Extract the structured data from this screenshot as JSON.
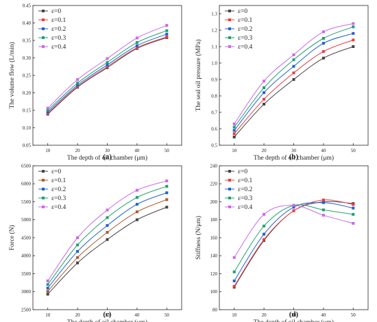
{
  "colors": [
    "#444444",
    "#ee3b3b",
    "#1f5fd9",
    "#1aa36a",
    "#cc66ee"
  ],
  "colors_c": [
    "#444444",
    "#b05a2a",
    "#1f5fd9",
    "#1aa36a",
    "#cc66ee"
  ],
  "marker": "square",
  "chart_data": [
    {
      "panel_label": "(a)",
      "type": "line",
      "xlabel": "The depth of oil chamber (μm)",
      "ylabel": "The volume flow (L/min)",
      "x": [
        10,
        20,
        30,
        40,
        50
      ],
      "xlim": [
        5,
        55
      ],
      "ylim": [
        0.05,
        0.45
      ],
      "xticks": [
        10,
        20,
        30,
        40,
        50
      ],
      "yticks": [
        0.05,
        0.1,
        0.15,
        0.2,
        0.25,
        0.3,
        0.35,
        0.4,
        0.45
      ],
      "ytick_labels": [
        "0.05",
        "0.10",
        "0.15",
        "0.20",
        "0.25",
        "0.30",
        "0.35",
        "0.40",
        "0.45"
      ],
      "legend": "top-left",
      "series": [
        {
          "name": "ε=0",
          "values": [
            0.139,
            0.216,
            0.272,
            0.327,
            0.358
          ]
        },
        {
          "name": "ε=0.1",
          "values": [
            0.141,
            0.218,
            0.275,
            0.329,
            0.36
          ]
        },
        {
          "name": "ε=0.2",
          "values": [
            0.145,
            0.222,
            0.28,
            0.335,
            0.368
          ]
        },
        {
          "name": "ε=0.3",
          "values": [
            0.15,
            0.228,
            0.287,
            0.344,
            0.378
          ]
        },
        {
          "name": "ε=0.4",
          "values": [
            0.156,
            0.238,
            0.298,
            0.357,
            0.393
          ]
        }
      ]
    },
    {
      "panel_label": "(b)",
      "type": "line",
      "xlabel": "The depth of oil chamber (μm)",
      "ylabel": "The seal oil pressure (MPa)",
      "x": [
        10,
        20,
        30,
        40,
        50
      ],
      "xlim": [
        5,
        55
      ],
      "ylim": [
        0.5,
        1.35
      ],
      "xticks": [
        10,
        20,
        30,
        40,
        50
      ],
      "yticks": [
        0.5,
        0.6,
        0.7,
        0.8,
        0.9,
        1.0,
        1.1,
        1.2,
        1.3
      ],
      "ytick_labels": [
        "0.5",
        "0.6",
        "0.7",
        "0.8",
        "0.9",
        "1.0",
        "1.1",
        "1.2",
        "1.3"
      ],
      "legend": "top-left",
      "series": [
        {
          "name": "ε=0",
          "values": [
            0.55,
            0.75,
            0.9,
            1.03,
            1.1
          ]
        },
        {
          "name": "ε=0.1",
          "values": [
            0.57,
            0.78,
            0.94,
            1.07,
            1.14
          ]
        },
        {
          "name": "ε=0.2",
          "values": [
            0.59,
            0.82,
            0.98,
            1.12,
            1.18
          ]
        },
        {
          "name": "ε=0.3",
          "values": [
            0.61,
            0.85,
            1.02,
            1.15,
            1.22
          ]
        },
        {
          "name": "ε=0.4",
          "values": [
            0.63,
            0.89,
            1.05,
            1.19,
            1.24
          ]
        }
      ]
    },
    {
      "panel_label": "(c)",
      "type": "line",
      "xlabel": "The depth of oil chamber (μm)",
      "ylabel": "Force (N)",
      "x": [
        10,
        20,
        30,
        40,
        50
      ],
      "xlim": [
        5,
        55
      ],
      "ylim": [
        2500,
        6500
      ],
      "xticks": [
        10,
        20,
        30,
        40,
        50
      ],
      "yticks": [
        2500,
        3000,
        3500,
        4000,
        4500,
        5000,
        5500,
        6000,
        6500
      ],
      "ytick_labels": [
        "2500",
        "3000",
        "3500",
        "4000",
        "4500",
        "5000",
        "5500",
        "6000",
        "6500"
      ],
      "legend": "top-left",
      "series": [
        {
          "name": "ε=0",
          "values": [
            2930,
            3800,
            4450,
            5000,
            5350
          ]
        },
        {
          "name": "ε=0.1",
          "values": [
            3010,
            3950,
            4650,
            5220,
            5560
          ]
        },
        {
          "name": "ε=0.2",
          "values": [
            3100,
            4120,
            4840,
            5430,
            5750
          ]
        },
        {
          "name": "ε=0.3",
          "values": [
            3200,
            4300,
            5060,
            5620,
            5930
          ]
        },
        {
          "name": "ε=0.4",
          "values": [
            3300,
            4500,
            5270,
            5820,
            6080
          ]
        }
      ]
    },
    {
      "panel_label": "(d)",
      "type": "line",
      "xlabel": "The depth of oil chamber (μm)",
      "ylabel": "Stiffness (N/μm)",
      "x": [
        10,
        20,
        30,
        40,
        50
      ],
      "xlim": [
        5,
        55
      ],
      "ylim": [
        80,
        240
      ],
      "xticks": [
        10,
        20,
        30,
        40,
        50
      ],
      "yticks": [
        80,
        100,
        120,
        140,
        160,
        180,
        200,
        220,
        240
      ],
      "ytick_labels": [
        "80",
        "100",
        "120",
        "140",
        "160",
        "180",
        "200",
        "220",
        "240"
      ],
      "legend": "top-left",
      "series": [
        {
          "name": "ε=0",
          "values": [
            105,
            157,
            190,
            200,
            198
          ]
        },
        {
          "name": "ε=0.1",
          "values": [
            106,
            158,
            190,
            202,
            197
          ]
        },
        {
          "name": "ε=0.2",
          "values": [
            112,
            164,
            194,
            199,
            193
          ]
        },
        {
          "name": "ε=0.3",
          "values": [
            122,
            173,
            196,
            191,
            186
          ]
        },
        {
          "name": "ε=0.4",
          "values": [
            138,
            186,
            196,
            185,
            176
          ]
        }
      ]
    }
  ]
}
